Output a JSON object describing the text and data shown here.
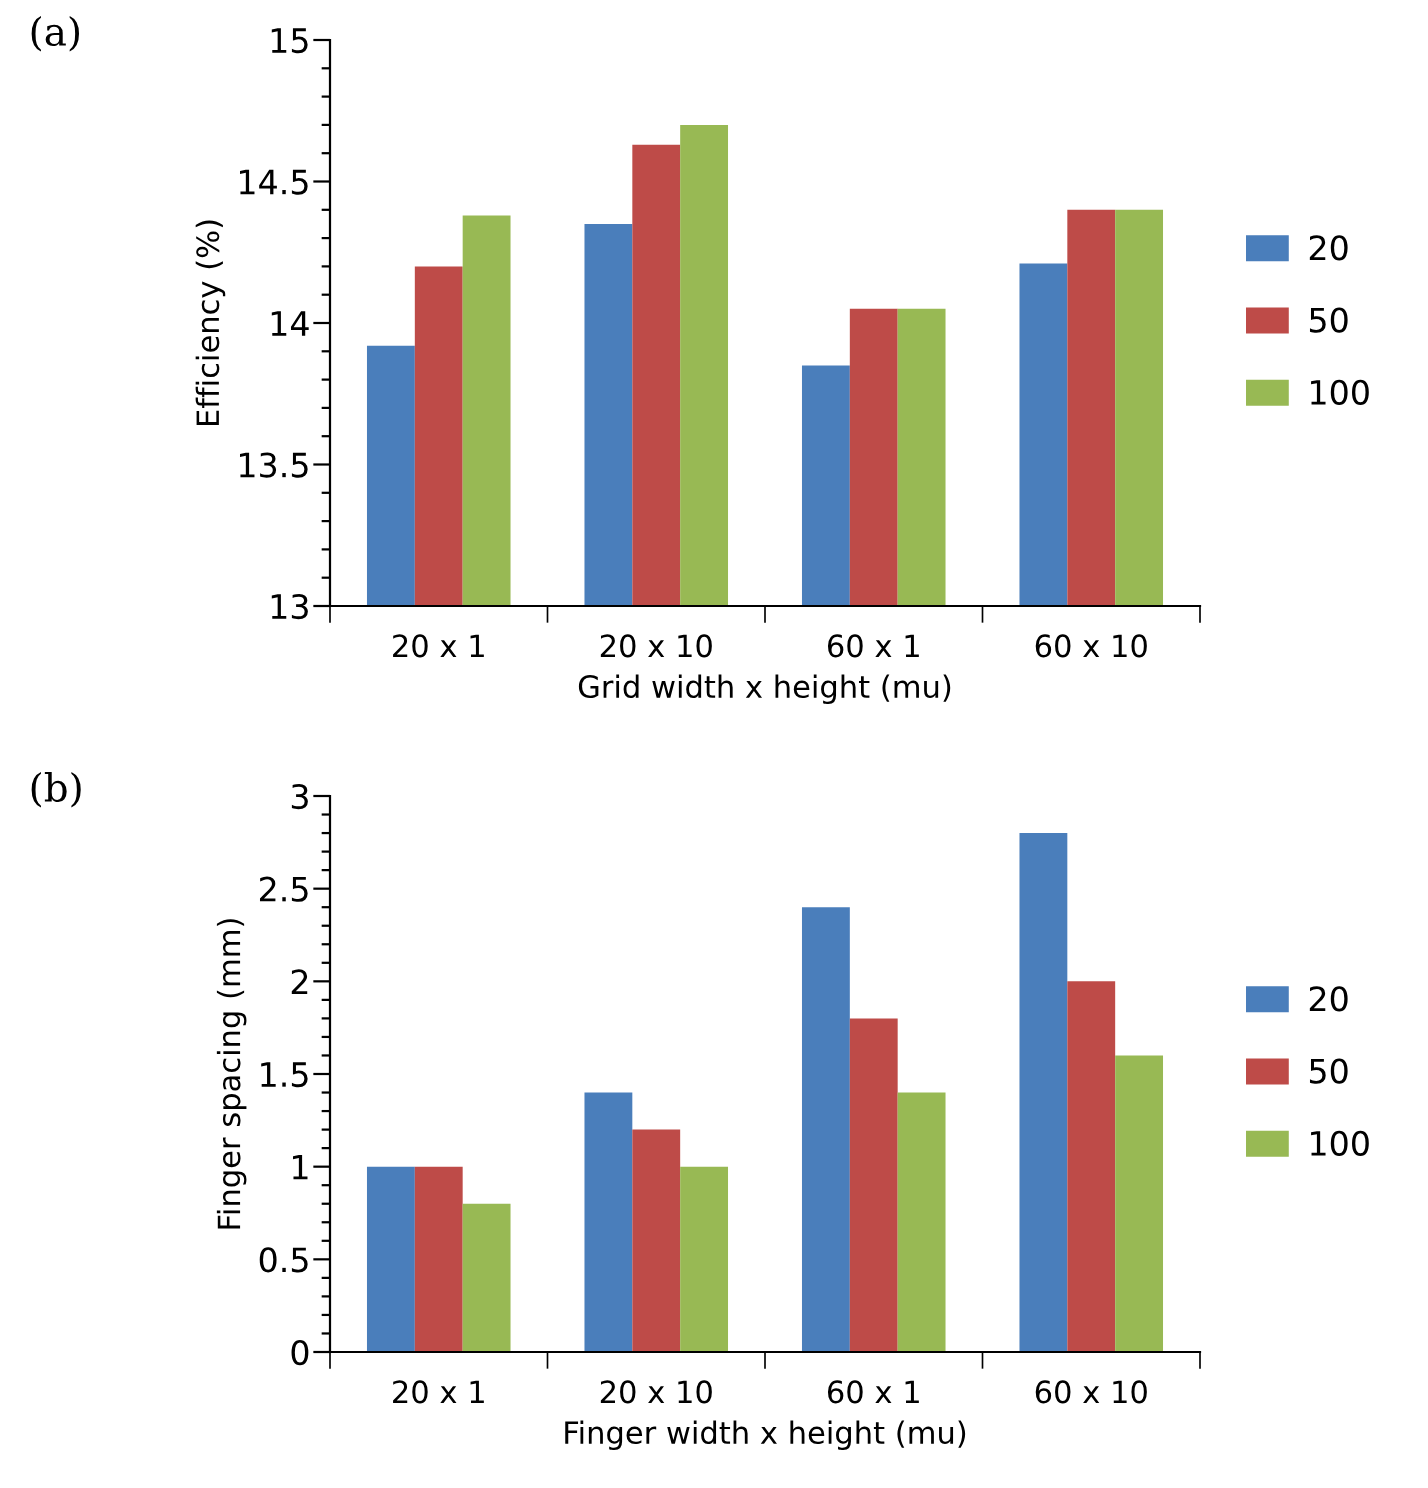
{
  "chart_data": [
    {
      "type": "bar",
      "title": "(a)",
      "xlabel": "Grid width x height (mu)",
      "ylabel": "Efficiency (%)",
      "categories": [
        "20 x 1",
        "20 x 10",
        "60 x 1",
        "60 x 10"
      ],
      "series": [
        {
          "name": "20",
          "color": "#4a7ebb",
          "values": [
            13.92,
            14.35,
            13.85,
            14.21
          ]
        },
        {
          "name": "50",
          "color": "#be4b48",
          "values": [
            14.2,
            14.63,
            14.05,
            14.4
          ]
        },
        {
          "name": "100",
          "color": "#98b954",
          "values": [
            14.38,
            14.7,
            14.05,
            14.4
          ]
        }
      ],
      "ylim": [
        13,
        15
      ],
      "yticks": [
        13,
        {
          "value": 13.1,
          "label": null
        },
        {
          "value": 13.2,
          "label": null
        },
        {
          "value": 13.3,
          "label": null
        },
        {
          "value": 13.4,
          "label": null
        },
        13.5,
        {
          "value": 13.6,
          "label": null
        },
        {
          "value": 13.7,
          "label": null
        },
        {
          "value": 13.8,
          "label": null
        },
        {
          "value": 13.9,
          "label": null
        },
        14,
        {
          "value": 14.1,
          "label": null
        },
        {
          "value": 14.2,
          "label": null
        },
        {
          "value": 14.3,
          "label": null
        },
        {
          "value": 14.4,
          "label": null
        },
        14.5,
        {
          "value": 14.6,
          "label": null
        },
        {
          "value": 14.7,
          "label": null
        },
        {
          "value": 14.8,
          "label": null
        },
        {
          "value": 14.9,
          "label": null
        },
        15
      ],
      "grid": false,
      "legend": "right"
    },
    {
      "type": "bar",
      "title": "(b)",
      "xlabel": "Finger width x height (mu)",
      "ylabel": "Finger spacing (mm)",
      "categories": [
        "20 x 1",
        "20 x 10",
        "60 x 1",
        "60 x 10"
      ],
      "series": [
        {
          "name": "20",
          "color": "#4a7ebb",
          "values": [
            1.0,
            1.4,
            2.4,
            2.8
          ]
        },
        {
          "name": "50",
          "color": "#be4b48",
          "values": [
            1.0,
            1.2,
            1.8,
            2.0
          ]
        },
        {
          "name": "100",
          "color": "#98b954",
          "values": [
            0.8,
            1.0,
            1.4,
            1.6
          ]
        }
      ],
      "ylim": [
        0,
        3
      ],
      "yticks": [
        0,
        {
          "value": 0.1,
          "label": null
        },
        {
          "value": 0.2,
          "label": null
        },
        {
          "value": 0.3,
          "label": null
        },
        {
          "value": 0.4,
          "label": null
        },
        0.5,
        {
          "value": 0.6,
          "label": null
        },
        {
          "value": 0.7,
          "label": null
        },
        {
          "value": 0.8,
          "label": null
        },
        {
          "value": 0.9,
          "label": null
        },
        1,
        {
          "value": 1.1,
          "label": null
        },
        {
          "value": 1.2,
          "label": null
        },
        {
          "value": 1.3,
          "label": null
        },
        {
          "value": 1.4,
          "label": null
        },
        1.5,
        {
          "value": 1.6,
          "label": null
        },
        {
          "value": 1.7,
          "label": null
        },
        {
          "value": 1.8,
          "label": null
        },
        {
          "value": 1.9,
          "label": null
        },
        2,
        {
          "value": 2.1,
          "label": null
        },
        {
          "value": 2.2,
          "label": null
        },
        {
          "value": 2.3,
          "label": null
        },
        {
          "value": 2.4,
          "label": null
        },
        2.5,
        {
          "value": 2.6,
          "label": null
        },
        {
          "value": 2.7,
          "label": null
        },
        {
          "value": 2.8,
          "label": null
        },
        {
          "value": 2.9,
          "label": null
        },
        3
      ],
      "grid": false,
      "legend": "right"
    }
  ]
}
